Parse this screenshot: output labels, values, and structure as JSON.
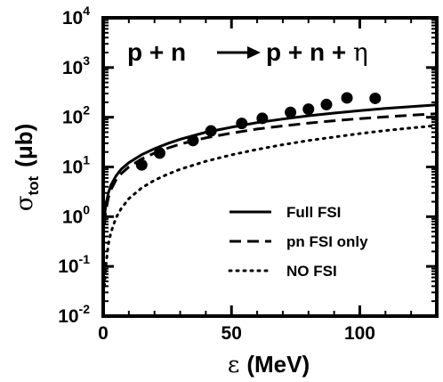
{
  "chart_data": {
    "type": "line",
    "title": "",
    "reaction": {
      "left": "p + n",
      "right": "p + n + ",
      "eta": "η"
    },
    "xlabel": {
      "symbol": "ε",
      "unit": "(MeV)"
    },
    "ylabel": {
      "symbol": "σ",
      "sub": "tot",
      "unit": "(μb)"
    },
    "xlim": [
      0,
      130
    ],
    "ylim": [
      0.01,
      10000
    ],
    "yscale": "log",
    "grid": false,
    "legend_position": "bottom-right",
    "x_ticks": [
      {
        "value": 0,
        "label": "0"
      },
      {
        "value": 50,
        "label": "50"
      },
      {
        "value": 100,
        "label": "100"
      }
    ],
    "y_ticks": [
      {
        "value": 0.01,
        "base": "10",
        "exp": "-2"
      },
      {
        "value": 0.1,
        "base": "10",
        "exp": "-1"
      },
      {
        "value": 1,
        "base": "10",
        "exp": "0"
      },
      {
        "value": 10,
        "base": "10",
        "exp": "1"
      },
      {
        "value": 100,
        "base": "10",
        "exp": "2"
      },
      {
        "value": 1000,
        "base": "10",
        "exp": "3"
      },
      {
        "value": 10000,
        "base": "10",
        "exp": "4"
      }
    ],
    "series": [
      {
        "name": "Full FSI",
        "style": "solid",
        "x": [
          0.5,
          1,
          2,
          3,
          5,
          7,
          10,
          15,
          20,
          25,
          30,
          40,
          50,
          60,
          70,
          80,
          90,
          100,
          110,
          120,
          130
        ],
        "y": [
          1.0,
          1.7,
          3.0,
          4.3,
          6.6,
          9.0,
          12.2,
          17.7,
          23.3,
          29.5,
          36,
          50,
          63,
          78,
          92,
          107,
          121,
          136,
          150,
          164,
          178
        ]
      },
      {
        "name": "pn FSI only",
        "style": "dashed",
        "x": [
          0.5,
          1,
          2,
          3,
          5,
          7,
          10,
          15,
          20,
          25,
          30,
          40,
          50,
          60,
          70,
          80,
          90,
          100,
          110,
          120,
          130
        ],
        "y": [
          0.7,
          1.3,
          2.4,
          3.5,
          5.5,
          7.3,
          10.0,
          14.5,
          19.0,
          23.8,
          28.8,
          38.5,
          48,
          58,
          67,
          76,
          85,
          94,
          102,
          110,
          118
        ]
      },
      {
        "name": "NO FSI",
        "style": "dotted",
        "x": [
          0.5,
          1,
          2,
          3,
          5,
          7,
          10,
          15,
          20,
          25,
          30,
          40,
          50,
          60,
          70,
          80,
          90,
          100,
          110,
          120,
          130
        ],
        "y": [
          0.04,
          0.1,
          0.28,
          0.48,
          0.95,
          1.45,
          2.3,
          3.8,
          5.4,
          7.1,
          9.0,
          13.0,
          17.5,
          22.5,
          28,
          34,
          40,
          47,
          54,
          61,
          68
        ]
      }
    ],
    "points": {
      "x": [
        15,
        22,
        35,
        42,
        54,
        62,
        73,
        80,
        87,
        95,
        106
      ],
      "y": [
        11,
        19,
        34,
        53,
        75,
        95,
        125,
        145,
        180,
        245,
        240
      ]
    }
  }
}
